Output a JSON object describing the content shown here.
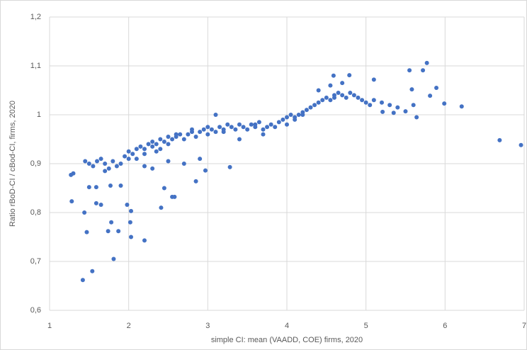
{
  "chart_data": {
    "type": "scatter",
    "x_label": "simple CI: mean (VAADD, COE) firms, 2020",
    "y_label": "Ratio rBoD-CI / cBod-CI, firms, 2020",
    "color": "#4472c4",
    "grid": true,
    "xlim": [
      1,
      7
    ],
    "xticks": [
      1,
      2,
      3,
      4,
      5,
      6,
      7
    ],
    "ylim": [
      0.6,
      1.2
    ],
    "yticks": [
      {
        "value": 0.6,
        "label": "0,6"
      },
      {
        "value": 0.7,
        "label": "0,7"
      },
      {
        "value": 0.8,
        "label": "0,8"
      },
      {
        "value": 0.9,
        "label": "0,9"
      },
      {
        "value": 1,
        "label": "1"
      },
      {
        "value": 1.1,
        "label": "1,1"
      },
      {
        "value": 1.2,
        "label": "1,2"
      }
    ],
    "x": [
      1.27,
      1.28,
      1.44,
      1.42,
      1.54,
      1.47,
      1.81,
      1.74,
      1.87,
      1.78,
      2.02,
      2.03,
      2.03,
      2.2,
      1.98,
      1.5,
      1.59,
      1.65,
      1.59,
      1.77,
      2.41,
      2.45,
      2.55,
      2.58,
      2.85,
      2.97,
      3.28,
      6.69,
      6.96,
      6.21,
      5.99,
      5.77,
      5.72,
      5.55,
      5.1,
      5.89,
      5.58,
      5.81,
      5.5,
      5.64,
      5.21,
      5.35,
      3.1,
      4.59,
      4.79,
      1.45,
      1.5,
      1.55,
      1.6,
      1.65,
      1.7,
      1.75,
      1.8,
      1.85,
      1.9,
      1.95,
      2.0,
      2.0,
      2.05,
      2.1,
      2.1,
      2.15,
      2.2,
      2.2,
      2.25,
      2.3,
      2.3,
      2.35,
      2.4,
      2.4,
      2.45,
      2.5,
      2.5,
      2.55,
      2.6,
      2.65,
      2.7,
      2.75,
      2.8,
      2.85,
      2.9,
      2.95,
      3.0,
      3.0,
      3.05,
      3.1,
      3.15,
      3.2,
      3.25,
      3.3,
      3.35,
      3.4,
      3.45,
      3.5,
      3.55,
      3.6,
      3.65,
      3.7,
      3.75,
      3.8,
      3.85,
      3.9,
      3.95,
      4.0,
      4.0,
      4.05,
      4.1,
      4.15,
      4.2,
      4.25,
      4.3,
      4.35,
      4.4,
      4.45,
      4.5,
      4.55,
      4.6,
      4.65,
      4.7,
      4.75,
      4.8,
      4.85,
      4.9,
      4.95,
      5.0,
      5.05,
      5.1,
      5.3,
      5.4,
      5.6,
      1.3,
      1.9,
      2.2,
      2.3,
      2.5,
      2.7,
      2.9,
      3.4,
      3.7,
      4.4,
      4.55,
      4.7,
      4.2,
      2.6,
      2.8,
      3.2,
      3.6,
      4.1,
      4.6,
      5.2,
      1.7,
      2.35
    ],
    "values": [
      0.877,
      0.823,
      0.8,
      0.662,
      0.68,
      0.76,
      0.705,
      0.762,
      0.762,
      0.78,
      0.78,
      0.803,
      0.75,
      0.743,
      0.816,
      0.852,
      0.852,
      0.816,
      0.819,
      0.855,
      0.81,
      0.85,
      0.832,
      0.832,
      0.864,
      0.886,
      0.893,
      0.948,
      0.938,
      1.017,
      1.023,
      1.106,
      1.091,
      1.091,
      1.072,
      1.055,
      1.052,
      1.039,
      1.007,
      0.995,
      1.006,
      1.004,
      1.0,
      1.08,
      1.081,
      0.905,
      0.9,
      0.895,
      0.905,
      0.91,
      0.9,
      0.89,
      0.905,
      0.895,
      0.9,
      0.915,
      0.91,
      0.925,
      0.92,
      0.93,
      0.91,
      0.935,
      0.93,
      0.92,
      0.94,
      0.935,
      0.945,
      0.94,
      0.95,
      0.93,
      0.945,
      0.955,
      0.94,
      0.95,
      0.955,
      0.96,
      0.95,
      0.96,
      0.965,
      0.955,
      0.965,
      0.97,
      0.96,
      0.975,
      0.97,
      0.965,
      0.975,
      0.97,
      0.98,
      0.975,
      0.97,
      0.98,
      0.975,
      0.97,
      0.98,
      0.975,
      0.985,
      0.97,
      0.975,
      0.98,
      0.975,
      0.985,
      0.99,
      0.98,
      0.995,
      1.0,
      0.99,
      1.0,
      1.005,
      1.01,
      1.015,
      1.02,
      1.025,
      1.03,
      1.035,
      1.03,
      1.04,
      1.045,
      1.04,
      1.035,
      1.045,
      1.04,
      1.035,
      1.03,
      1.025,
      1.02,
      1.03,
      1.02,
      1.015,
      1.02,
      0.88,
      0.855,
      0.895,
      0.89,
      0.905,
      0.9,
      0.91,
      0.95,
      0.96,
      1.05,
      1.06,
      1.065,
      1.0,
      0.96,
      0.97,
      0.965,
      0.98,
      0.995,
      1.035,
      1.025,
      0.885,
      0.925
    ]
  }
}
